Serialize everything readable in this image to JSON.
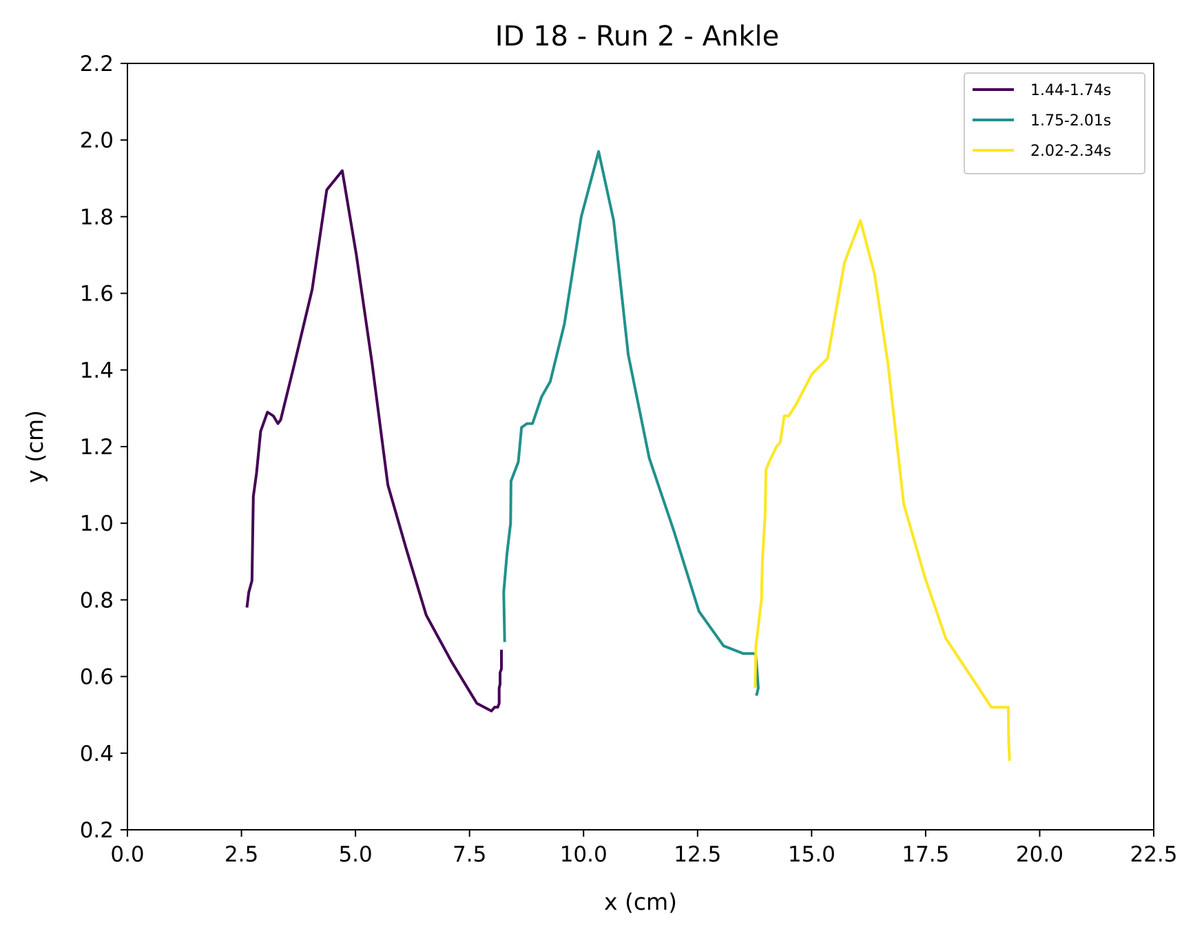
{
  "chart_data": {
    "type": "line",
    "title": "ID 18 - Run 2 - Ankle",
    "xlabel": "x (cm)",
    "ylabel": "y (cm)",
    "xlim": [
      0,
      22.5
    ],
    "ylim": [
      0.2,
      2.2
    ],
    "xticks": [
      "0.0",
      "2.5",
      "5.0",
      "7.5",
      "10.0",
      "12.5",
      "15.0",
      "17.5",
      "20.0",
      "22.5"
    ],
    "yticks": [
      "0.2",
      "0.4",
      "0.6",
      "0.8",
      "1.0",
      "1.2",
      "1.4",
      "1.6",
      "1.8",
      "2.0",
      "2.2"
    ],
    "grid": false,
    "legend_position": "top-right",
    "series": [
      {
        "name": "1.44-1.74s",
        "color": "#440154",
        "points": [
          [
            2.62,
            0.78
          ],
          [
            2.66,
            0.82
          ],
          [
            2.73,
            0.85
          ],
          [
            2.76,
            1.07
          ],
          [
            2.83,
            1.13
          ],
          [
            2.92,
            1.24
          ],
          [
            3.07,
            1.29
          ],
          [
            3.2,
            1.28
          ],
          [
            3.3,
            1.26
          ],
          [
            3.36,
            1.27
          ],
          [
            3.65,
            1.41
          ],
          [
            4.05,
            1.61
          ],
          [
            4.37,
            1.87
          ],
          [
            4.71,
            1.92
          ],
          [
            5.02,
            1.7
          ],
          [
            5.36,
            1.42
          ],
          [
            5.71,
            1.1
          ],
          [
            6.12,
            0.93
          ],
          [
            6.55,
            0.76
          ],
          [
            7.1,
            0.64
          ],
          [
            7.66,
            0.53
          ],
          [
            7.98,
            0.51
          ],
          [
            8.05,
            0.52
          ],
          [
            8.12,
            0.52
          ],
          [
            8.15,
            0.53
          ],
          [
            8.15,
            0.57
          ],
          [
            8.17,
            0.58
          ],
          [
            8.17,
            0.6
          ],
          [
            8.17,
            0.61
          ],
          [
            8.2,
            0.62
          ],
          [
            8.2,
            0.67
          ]
        ]
      },
      {
        "name": "1.75-2.01s",
        "color": "#21918c",
        "points": [
          [
            8.27,
            0.69
          ],
          [
            8.25,
            0.82
          ],
          [
            8.32,
            0.92
          ],
          [
            8.4,
            1.0
          ],
          [
            8.41,
            1.11
          ],
          [
            8.57,
            1.16
          ],
          [
            8.64,
            1.25
          ],
          [
            8.76,
            1.26
          ],
          [
            8.88,
            1.26
          ],
          [
            9.08,
            1.33
          ],
          [
            9.27,
            1.37
          ],
          [
            9.58,
            1.52
          ],
          [
            9.95,
            1.8
          ],
          [
            10.33,
            1.97
          ],
          [
            10.66,
            1.79
          ],
          [
            10.98,
            1.44
          ],
          [
            11.44,
            1.17
          ],
          [
            11.98,
            0.98
          ],
          [
            12.53,
            0.77
          ],
          [
            13.07,
            0.68
          ],
          [
            13.5,
            0.66
          ],
          [
            13.77,
            0.66
          ],
          [
            13.8,
            0.62
          ],
          [
            13.83,
            0.57
          ],
          [
            13.79,
            0.55
          ]
        ]
      },
      {
        "name": "2.02-2.34s",
        "color": "#fde725",
        "points": [
          [
            13.76,
            0.57
          ],
          [
            13.78,
            0.68
          ],
          [
            13.9,
            0.8
          ],
          [
            13.92,
            0.9
          ],
          [
            13.98,
            1.02
          ],
          [
            14.0,
            1.14
          ],
          [
            14.07,
            1.16
          ],
          [
            14.23,
            1.2
          ],
          [
            14.31,
            1.21
          ],
          [
            14.4,
            1.28
          ],
          [
            14.5,
            1.28
          ],
          [
            14.66,
            1.31
          ],
          [
            15.01,
            1.39
          ],
          [
            15.35,
            1.43
          ],
          [
            15.72,
            1.68
          ],
          [
            16.07,
            1.79
          ],
          [
            16.38,
            1.65
          ],
          [
            16.67,
            1.42
          ],
          [
            17.02,
            1.05
          ],
          [
            17.48,
            0.86
          ],
          [
            17.94,
            0.7
          ],
          [
            18.94,
            0.52
          ],
          [
            19.31,
            0.52
          ],
          [
            19.32,
            0.43
          ],
          [
            19.34,
            0.38
          ]
        ]
      }
    ]
  }
}
